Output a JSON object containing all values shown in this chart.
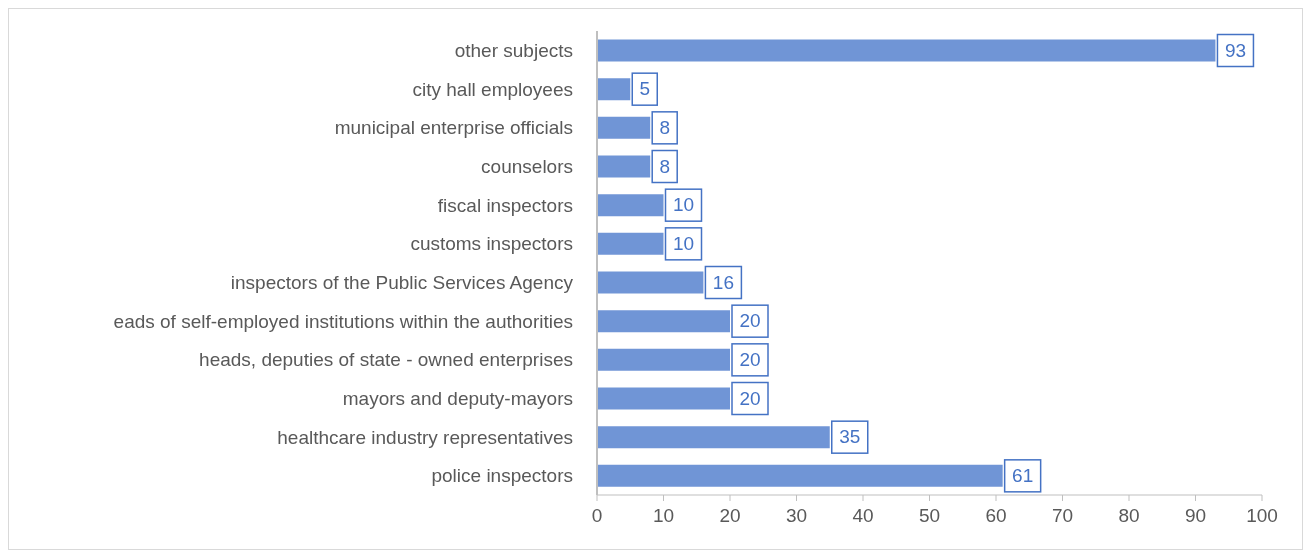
{
  "chart_data": {
    "type": "bar",
    "orientation": "horizontal",
    "categories": [
      "other subjects",
      "city hall employees",
      "municipal enterprise officials",
      "counselors",
      "fiscal inspectors",
      "customs inspectors",
      "inspectors of the Public Services Agency",
      "eads of self-employed institutions within the authorities",
      "heads, deputies of state - owned enterprises",
      "mayors and deputy-mayors",
      "healthcare industry representatives",
      "police inspectors"
    ],
    "values": [
      93,
      5,
      8,
      8,
      10,
      10,
      16,
      20,
      20,
      20,
      35,
      61
    ],
    "color": "#7095d6",
    "xlim": [
      0,
      100
    ],
    "xticks": [
      0,
      10,
      20,
      30,
      40,
      50,
      60,
      70,
      80,
      90,
      100
    ],
    "grid": false,
    "legend": false,
    "data_labels": true
  }
}
